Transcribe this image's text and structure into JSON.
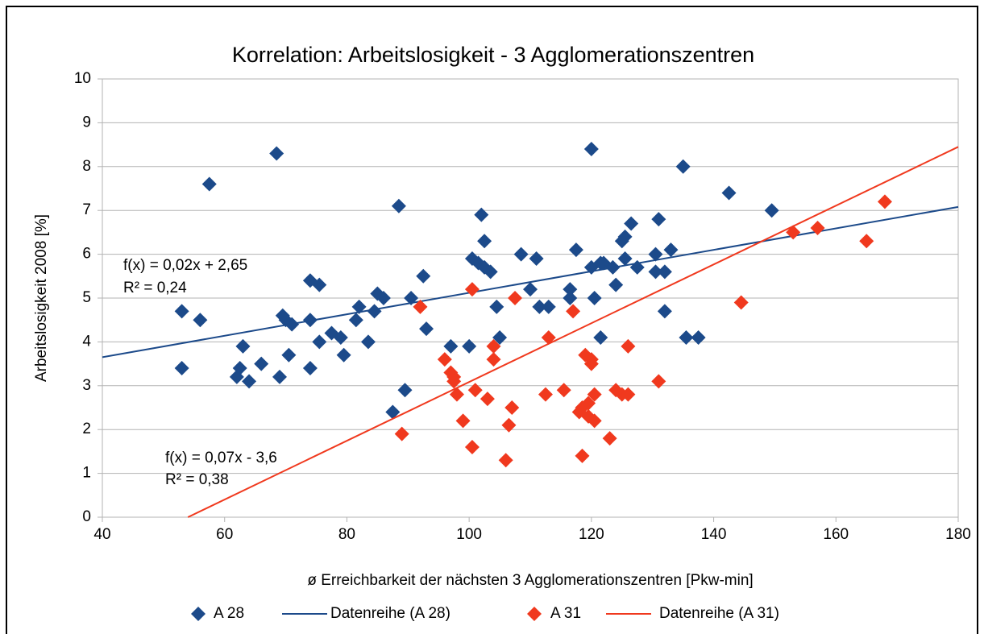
{
  "chart_data": {
    "type": "scatter",
    "title": "Korrelation: Arbeitslosigkeit - 3 Agglomerationszentren",
    "xlabel": "ø Erreichbarkeit der nächsten 3 Agglomerationszentren [Pkw-min]",
    "ylabel": "Arbeitslosigkeit 2008 [%]",
    "xlim": [
      40,
      180
    ],
    "ylim": [
      0,
      10
    ],
    "xticks": [
      40,
      60,
      80,
      100,
      120,
      140,
      160,
      180
    ],
    "yticks": [
      0,
      1,
      2,
      3,
      4,
      5,
      6,
      7,
      8,
      9,
      10
    ],
    "grid": true,
    "legend": "bottom",
    "annotations": [
      "f(x) = 0,02x + 2,65",
      "R² = 0,24",
      "f(x) = 0,07x - 3,6",
      "R² = 0,38"
    ],
    "series": [
      {
        "name": "A 28",
        "color": "#1c4a8a",
        "marker": "diamond",
        "x": [
          53,
          53,
          56,
          57.5,
          62,
          62.5,
          63,
          64,
          66,
          68.5,
          69,
          69.5,
          70,
          70.5,
          71,
          74,
          74,
          74,
          75.5,
          75.5,
          77.5,
          79,
          79.5,
          81.5,
          82,
          83.5,
          84.5,
          85,
          86,
          87.5,
          88.5,
          89.5,
          90.5,
          92.5,
          93,
          97,
          100,
          100.5,
          101.5,
          102,
          102.5,
          102.5,
          103.5,
          104.5,
          105,
          108.5,
          110,
          111,
          111.5,
          113,
          116.5,
          116.5,
          117.5,
          120,
          120,
          120.5,
          121.5,
          121.5,
          122,
          123.5,
          124,
          125,
          125.5,
          125.5,
          126.5,
          127.5,
          130.5,
          130.5,
          131,
          132,
          132,
          133,
          135,
          135.5,
          137.5,
          142.5,
          149.5
        ],
        "values": [
          4.7,
          3.4,
          4.5,
          7.6,
          3.2,
          3.4,
          3.9,
          3.1,
          3.5,
          8.3,
          3.2,
          4.6,
          4.5,
          3.7,
          4.4,
          5.4,
          4.5,
          3.4,
          5.3,
          4.0,
          4.2,
          4.1,
          3.7,
          4.5,
          4.8,
          4.0,
          4.7,
          5.1,
          5.0,
          2.4,
          7.1,
          2.9,
          5.0,
          5.5,
          4.3,
          3.9,
          3.9,
          5.9,
          5.8,
          6.9,
          6.3,
          5.7,
          5.6,
          4.8,
          4.1,
          6.0,
          5.2,
          5.9,
          4.8,
          4.8,
          5.2,
          5.0,
          6.1,
          5.7,
          8.4,
          5.0,
          5.8,
          4.1,
          5.8,
          5.7,
          5.3,
          6.3,
          5.9,
          6.4,
          6.7,
          5.7,
          6.0,
          5.6,
          6.8,
          5.6,
          4.7,
          6.1,
          8.0,
          4.1,
          4.1,
          7.4,
          7.0
        ]
      },
      {
        "name": "Datenreihe (A 28)",
        "color": "#1c4a8a",
        "marker": "line",
        "x": [
          40,
          180
        ],
        "values": [
          3.65,
          7.08
        ]
      },
      {
        "name": "A 31",
        "color": "#f0391e",
        "marker": "diamond",
        "x": [
          89,
          92,
          96,
          97,
          97.5,
          97.5,
          98,
          99,
          100.5,
          100.5,
          101,
          103,
          104,
          104,
          106,
          106.5,
          107,
          107.5,
          112.5,
          113,
          115.5,
          117,
          118,
          118.5,
          118.5,
          119,
          119.5,
          119.5,
          120,
          120,
          120.5,
          120.5,
          123,
          124,
          125,
          126,
          126,
          131,
          144.5,
          153,
          157,
          165,
          168
        ],
        "values": [
          1.9,
          4.8,
          3.6,
          3.3,
          3.2,
          3.1,
          2.8,
          2.2,
          5.2,
          1.6,
          2.9,
          2.7,
          3.9,
          3.6,
          1.3,
          2.1,
          2.5,
          5.0,
          2.8,
          4.1,
          2.9,
          4.7,
          2.4,
          2.5,
          1.4,
          3.7,
          2.6,
          2.3,
          3.6,
          3.5,
          2.2,
          2.8,
          1.8,
          2.9,
          2.8,
          3.9,
          2.8,
          3.1,
          4.9,
          6.5,
          6.6,
          6.3,
          7.2
        ]
      },
      {
        "name": "Datenreihe (A 31)",
        "color": "#f0391e",
        "marker": "line",
        "x": [
          54,
          180
        ],
        "values": [
          0,
          8.45
        ]
      }
    ]
  }
}
